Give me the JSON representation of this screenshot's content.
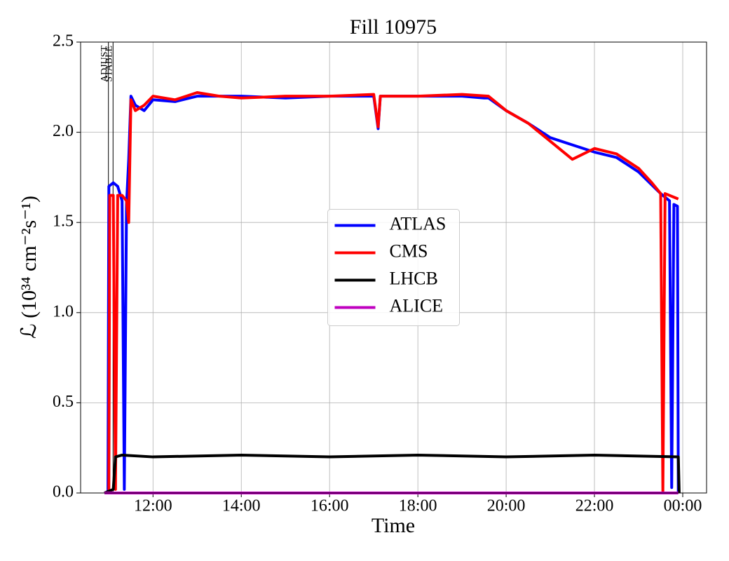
{
  "chart_data": {
    "type": "line",
    "title": "Fill 10975",
    "x_label": "Time",
    "y_label": "ℒ (10³⁴ cm⁻²s⁻¹)",
    "xlim": [
      10.36,
      24.54
    ],
    "ylim": [
      0,
      2.5
    ],
    "xticks": [
      {
        "value": 12,
        "label": "12:00"
      },
      {
        "value": 14,
        "label": "14:00"
      },
      {
        "value": 16,
        "label": "16:00"
      },
      {
        "value": 18,
        "label": "18:00"
      },
      {
        "value": 20,
        "label": "20:00"
      },
      {
        "value": 22,
        "label": "22:00"
      },
      {
        "value": 24,
        "label": "00:00"
      }
    ],
    "yticks": [
      {
        "value": 0,
        "label": "0.0"
      },
      0.5,
      {
        "value": 1,
        "label": "1.0"
      },
      1.5,
      {
        "value": 2,
        "label": "2.0"
      },
      2.5
    ],
    "grid": true,
    "legend": "center",
    "annotations": [
      {
        "label": "ADJUST",
        "x": 10.99
      },
      {
        "label": "STABLE",
        "x": 11.095
      }
    ],
    "series": [
      {
        "name": "ATLAS",
        "color": "#0000ff",
        "x": [
          10.9,
          10.98,
          11.0,
          11.1,
          11.2,
          11.3,
          11.35,
          11.4,
          11.45,
          11.5,
          11.6,
          11.8,
          12.0,
          12.5,
          13.0,
          14.0,
          15.0,
          16.0,
          17.0,
          17.1,
          17.15,
          18.0,
          19.0,
          19.5,
          19.6,
          20.0,
          20.5,
          21.0,
          21.5,
          22.0,
          22.5,
          23.0,
          23.5,
          23.7,
          23.75,
          23.8,
          23.88,
          23.9
        ],
        "values": [
          0,
          0,
          1.7,
          1.72,
          1.7,
          1.62,
          0.02,
          1.6,
          1.85,
          2.2,
          2.15,
          2.12,
          2.18,
          2.17,
          2.2,
          2.2,
          2.19,
          2.2,
          2.2,
          2.02,
          2.2,
          2.2,
          2.2,
          2.19,
          2.19,
          2.12,
          2.05,
          1.97,
          1.93,
          1.89,
          1.86,
          1.78,
          1.66,
          1.62,
          0.03,
          1.6,
          1.59,
          0
        ]
      },
      {
        "name": "CMS",
        "color": "#ff0000",
        "x": [
          10.9,
          11.0,
          11.02,
          11.1,
          11.15,
          11.2,
          11.3,
          11.4,
          11.45,
          11.5,
          11.6,
          11.8,
          12.0,
          12.5,
          13.0,
          13.5,
          14.0,
          15.0,
          16.0,
          17.0,
          17.1,
          17.15,
          18.0,
          19.0,
          19.6,
          20.0,
          20.5,
          21.0,
          21.5,
          22.0,
          22.5,
          23.0,
          23.3,
          23.5,
          23.55,
          23.6,
          23.9
        ],
        "values": [
          0,
          0,
          1.65,
          1.65,
          0.02,
          1.65,
          1.65,
          1.62,
          1.5,
          2.18,
          2.12,
          2.15,
          2.2,
          2.18,
          2.22,
          2.2,
          2.19,
          2.2,
          2.2,
          2.21,
          2.03,
          2.2,
          2.2,
          2.21,
          2.2,
          2.12,
          2.05,
          1.95,
          1.85,
          1.91,
          1.88,
          1.8,
          1.72,
          1.66,
          0,
          1.66,
          1.63
        ]
      },
      {
        "name": "LHCB",
        "color": "#000000",
        "x": [
          10.9,
          11.1,
          11.15,
          11.3,
          12.0,
          14.0,
          16.0,
          18.0,
          20.0,
          22.0,
          23.9,
          23.92
        ],
        "values": [
          0,
          0.02,
          0.2,
          0.21,
          0.2,
          0.21,
          0.2,
          0.21,
          0.2,
          0.21,
          0.2,
          0
        ]
      },
      {
        "name": "ALICE",
        "color": "#bf00bf",
        "x": [
          10.9,
          23.9
        ],
        "values": [
          0,
          0
        ]
      }
    ]
  }
}
